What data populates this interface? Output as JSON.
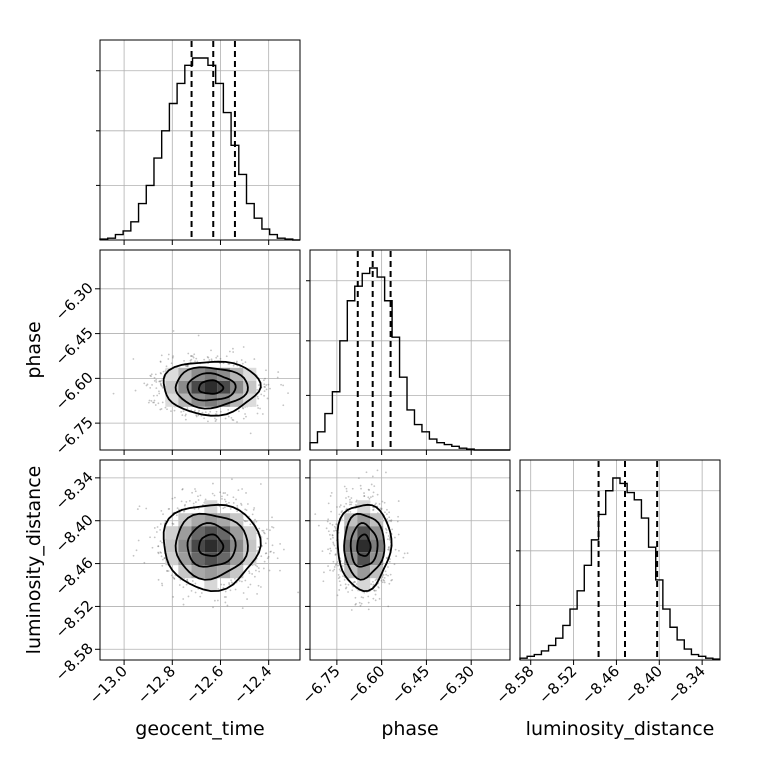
{
  "chart_data": {
    "type": "corner",
    "parameters": [
      "geocent_time",
      "phase",
      "luminosity_distance"
    ],
    "axis_labels": {
      "x": [
        "geocent_time",
        "phase",
        "luminosity_distance"
      ],
      "y": [
        "phase",
        "luminosity_distance"
      ]
    },
    "ranges": {
      "geocent_time": [
        -13.1,
        -12.27
      ],
      "phase": [
        -6.84,
        -6.17
      ],
      "luminosity_distance": [
        -8.595,
        -8.315
      ]
    },
    "ticks": {
      "geocent_time": {
        "values": [
          -13.0,
          -12.8,
          -12.6,
          -12.4
        ],
        "labels": [
          "−13.0",
          "−12.8",
          "−12.6",
          "−12.4"
        ]
      },
      "phase": {
        "values": [
          -6.75,
          -6.6,
          -6.45,
          -6.3
        ],
        "labels": [
          "−6.75",
          "−6.60",
          "−6.45",
          "−6.30"
        ]
      },
      "luminosity_distance": {
        "values": [
          -8.58,
          -8.52,
          -8.46,
          -8.4,
          -8.34
        ],
        "labels": [
          "−8.58",
          "−8.52",
          "−8.46",
          "−8.40",
          "−8.34"
        ]
      }
    },
    "histograms": [
      {
        "param": "geocent_time",
        "bin_edges": [
          -13.1,
          -13.068,
          -13.036,
          -13.004,
          -12.972,
          -12.94,
          -12.908,
          -12.876,
          -12.844,
          -12.812,
          -12.78,
          -12.748,
          -12.716,
          -12.684,
          -12.652,
          -12.62,
          -12.588,
          -12.556,
          -12.524,
          -12.492,
          -12.46,
          -12.428,
          -12.396,
          -12.364,
          -12.332,
          -12.3,
          -12.27
        ],
        "counts": [
          0.5,
          1,
          3,
          5,
          10,
          20,
          30,
          45,
          60,
          75,
          86,
          96,
          100,
          100,
          96,
          86,
          70,
          52,
          36,
          20,
          12,
          6,
          3,
          1,
          0.5,
          0
        ],
        "quantiles": [
          -12.72,
          -12.63,
          -12.54
        ]
      },
      {
        "param": "phase",
        "bin_edges": [
          -6.84,
          -6.815,
          -6.79,
          -6.765,
          -6.74,
          -6.715,
          -6.69,
          -6.665,
          -6.64,
          -6.615,
          -6.59,
          -6.565,
          -6.54,
          -6.515,
          -6.49,
          -6.465,
          -6.44,
          -6.415,
          -6.39,
          -6.365,
          -6.34,
          -6.315,
          -6.29,
          -6.265,
          -6.24,
          -6.215,
          -6.19,
          -6.17
        ],
        "counts": [
          4,
          10,
          20,
          32,
          60,
          82,
          90,
          97,
          100,
          95,
          82,
          62,
          40,
          22,
          14,
          10,
          6,
          4,
          3,
          2,
          1,
          0.5,
          0,
          0,
          0,
          0,
          0
        ],
        "quantiles": [
          -6.68,
          -6.63,
          -6.57
        ]
      },
      {
        "param": "luminosity_distance",
        "bin_edges": [
          -8.595,
          -8.585,
          -8.575,
          -8.565,
          -8.555,
          -8.545,
          -8.535,
          -8.525,
          -8.515,
          -8.505,
          -8.495,
          -8.485,
          -8.475,
          -8.465,
          -8.455,
          -8.445,
          -8.435,
          -8.425,
          -8.415,
          -8.405,
          -8.395,
          -8.385,
          -8.375,
          -8.365,
          -8.355,
          -8.345,
          -8.335,
          -8.325,
          -8.315
        ],
        "counts": [
          1,
          2,
          3,
          5,
          8,
          12,
          19,
          28,
          38,
          52,
          66,
          80,
          93,
          100,
          97,
          92,
          88,
          78,
          62,
          44,
          28,
          18,
          11,
          6,
          3,
          2,
          1,
          0.5
        ],
        "quantiles": [
          -8.485,
          -8.448,
          -8.403
        ]
      }
    ],
    "joint_2d": [
      {
        "x": "geocent_time",
        "y": "phase",
        "center": [
          -12.64,
          -6.63
        ],
        "sigma": [
          0.1,
          0.045
        ],
        "contour_levels_sigma": [
          0.5,
          1.0,
          1.5,
          2.0
        ]
      },
      {
        "x": "geocent_time",
        "y": "luminosity_distance",
        "center": [
          -12.64,
          -8.435
        ],
        "sigma": [
          0.1,
          0.03
        ],
        "contour_levels_sigma": [
          0.5,
          1.0,
          1.5,
          2.0
        ]
      },
      {
        "x": "phase",
        "y": "luminosity_distance",
        "center": [
          -6.66,
          -8.435
        ],
        "sigma": [
          0.045,
          0.03
        ],
        "contour_levels_sigma": [
          0.5,
          1.0,
          1.5,
          2.0
        ]
      }
    ],
    "grid": true
  }
}
